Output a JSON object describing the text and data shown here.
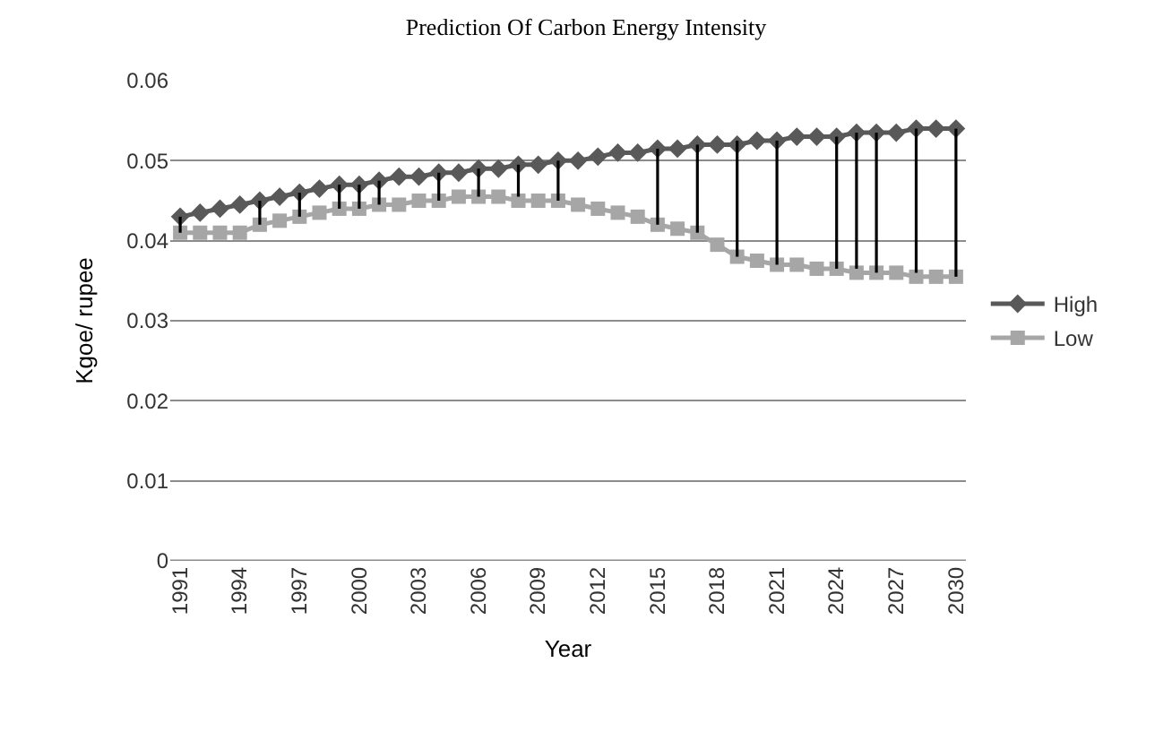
{
  "chart_data": {
    "type": "line",
    "title": "Prediction Of Carbon Energy Intensity",
    "xlabel": "Year",
    "ylabel": "Kgoe/ rupee",
    "categories": [
      "1991",
      null,
      null,
      "1994",
      null,
      null,
      "1997",
      null,
      null,
      "2000",
      null,
      null,
      "2003",
      null,
      null,
      "2006",
      null,
      null,
      "2009",
      null,
      null,
      "2012",
      null,
      null,
      "2015",
      null,
      null,
      "2018",
      null,
      null,
      "2021",
      null,
      null,
      "2024",
      null,
      null,
      "2027",
      null,
      null,
      "2030"
    ],
    "series": [
      {
        "name": "High",
        "color": "#595959",
        "marker": "diamond",
        "values": [
          0.043,
          0.0435,
          0.044,
          0.0445,
          0.045,
          0.0455,
          0.046,
          0.0465,
          0.047,
          0.047,
          0.0475,
          0.048,
          0.048,
          0.0485,
          0.0485,
          0.049,
          0.049,
          0.0495,
          0.0495,
          0.05,
          0.05,
          0.0505,
          0.051,
          0.051,
          0.0515,
          0.0515,
          0.052,
          0.052,
          0.052,
          0.0525,
          0.0525,
          0.053,
          0.053,
          0.053,
          0.0535,
          0.0535,
          0.0535,
          0.054,
          0.054,
          0.054
        ],
        "errors": [
          [
            0.041,
            0.043
          ],
          null,
          null,
          null,
          [
            0.042,
            0.045
          ],
          null,
          [
            0.043,
            0.046
          ],
          null,
          [
            0.044,
            0.047
          ],
          [
            0.044,
            0.047
          ],
          [
            0.0445,
            0.0475
          ],
          null,
          null,
          [
            0.045,
            0.0485
          ],
          null,
          [
            0.0455,
            0.049
          ],
          null,
          [
            0.0455,
            0.0495
          ],
          null,
          [
            0.045,
            0.05
          ],
          null,
          null,
          null,
          null,
          [
            0.042,
            0.0515
          ],
          null,
          [
            0.041,
            0.052
          ],
          null,
          [
            0.038,
            0.0525
          ],
          null,
          [
            0.037,
            0.0525
          ],
          null,
          null,
          [
            0.0365,
            0.053
          ],
          [
            0.0365,
            0.0535
          ],
          [
            0.036,
            0.0535
          ],
          null,
          [
            0.036,
            0.054
          ],
          null,
          [
            0.0355,
            0.054
          ]
        ]
      },
      {
        "name": "Low",
        "color": "#a6a6a6",
        "marker": "square",
        "values": [
          0.041,
          0.041,
          0.041,
          0.041,
          0.042,
          0.0425,
          0.043,
          0.0435,
          0.044,
          0.044,
          0.0445,
          0.0445,
          0.045,
          0.045,
          0.0455,
          0.0455,
          0.0455,
          0.045,
          0.045,
          0.045,
          0.0445,
          0.044,
          0.0435,
          0.043,
          0.042,
          0.0415,
          0.041,
          0.0395,
          0.038,
          0.0375,
          0.037,
          0.037,
          0.0365,
          0.0365,
          0.036,
          0.036,
          0.036,
          0.0355,
          0.0355,
          0.0355
        ]
      }
    ],
    "ylim": [
      0,
      0.06
    ],
    "yticks": [
      0,
      {
        "value": 0.01,
        "label": "0.01"
      },
      {
        "value": 0.02,
        "label": "0.02"
      },
      {
        "value": 0.03,
        "label": "0.03"
      },
      {
        "value": 0.04,
        "label": "0.04"
      },
      {
        "value": 0.05,
        "label": "0.05"
      },
      {
        "value": 0.06,
        "label": "0.06"
      }
    ],
    "grid": "y",
    "legend": "right",
    "line_style": "solid"
  }
}
